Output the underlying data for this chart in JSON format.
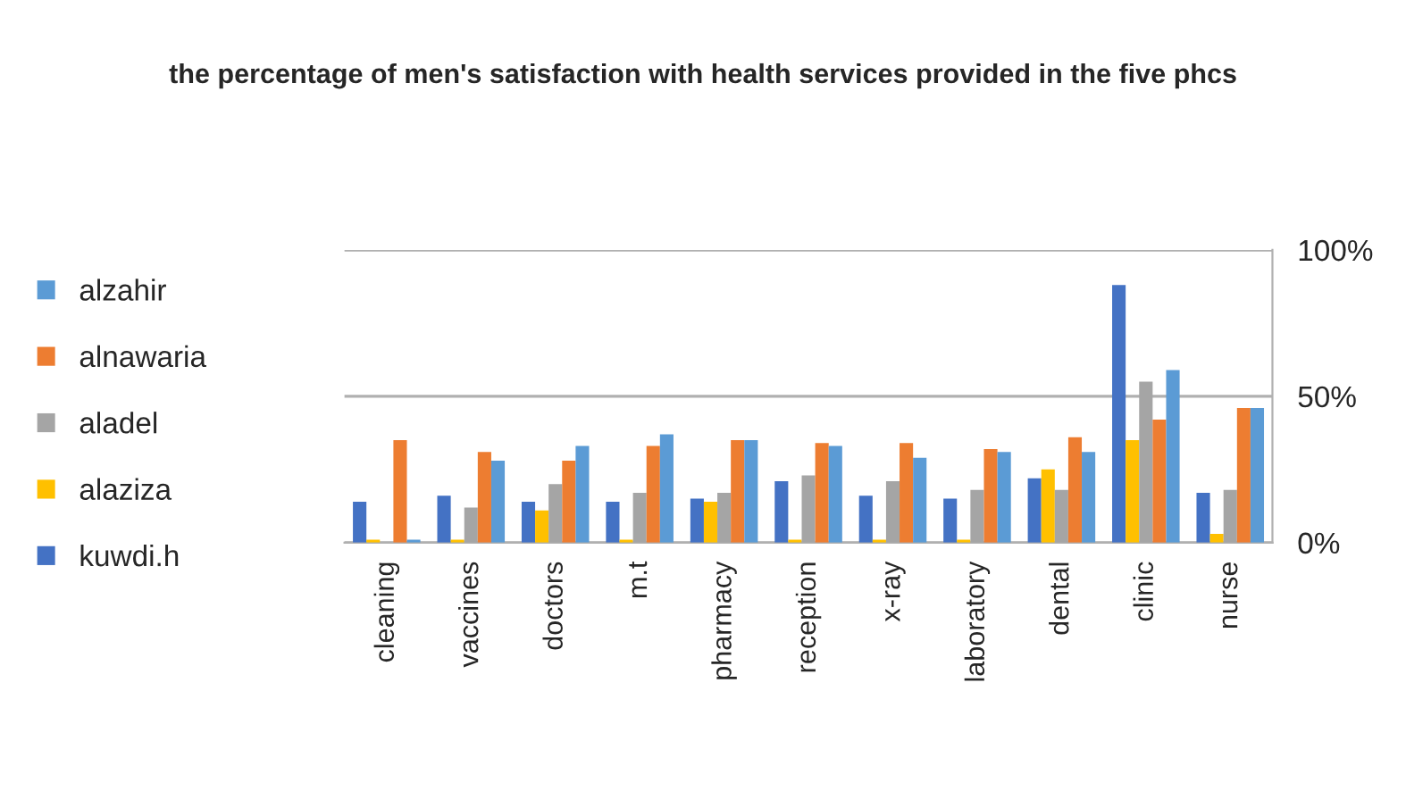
{
  "chart_data": {
    "type": "bar",
    "title": "the percentage of men's satisfaction with health services provided in the five phcs",
    "categories": [
      "cleaning",
      "vaccines",
      "doctors",
      "m.t",
      "pharmacy",
      "reception",
      "x-ray",
      "laboratory",
      "dental",
      "clinic",
      "nurse"
    ],
    "series": [
      {
        "name": "kuwdi.h",
        "color": "#4472c4",
        "values": [
          14,
          16,
          14,
          14,
          15,
          21,
          16,
          15,
          22,
          88,
          17
        ]
      },
      {
        "name": "alaziza",
        "color": "#ffc000",
        "values": [
          1,
          1,
          11,
          1,
          14,
          1,
          1,
          1,
          25,
          35,
          3
        ]
      },
      {
        "name": "aladel",
        "color": "#a5a5a5",
        "values": [
          0,
          12,
          20,
          17,
          17,
          23,
          21,
          18,
          18,
          55,
          18
        ]
      },
      {
        "name": "alnawaria",
        "color": "#ed7d31",
        "values": [
          35,
          31,
          28,
          33,
          35,
          34,
          34,
          32,
          36,
          42,
          46
        ]
      },
      {
        "name": "alzahir",
        "color": "#5b9bd5",
        "values": [
          1,
          28,
          33,
          37,
          35,
          33,
          29,
          31,
          31,
          59,
          46
        ]
      }
    ],
    "ylim": [
      0,
      100
    ],
    "yticks": [
      {
        "value": 0,
        "label": "0%"
      },
      {
        "value": 50,
        "label": "50%"
      },
      {
        "value": 100,
        "label": "100%"
      }
    ],
    "grid": "y",
    "legend": "left"
  }
}
